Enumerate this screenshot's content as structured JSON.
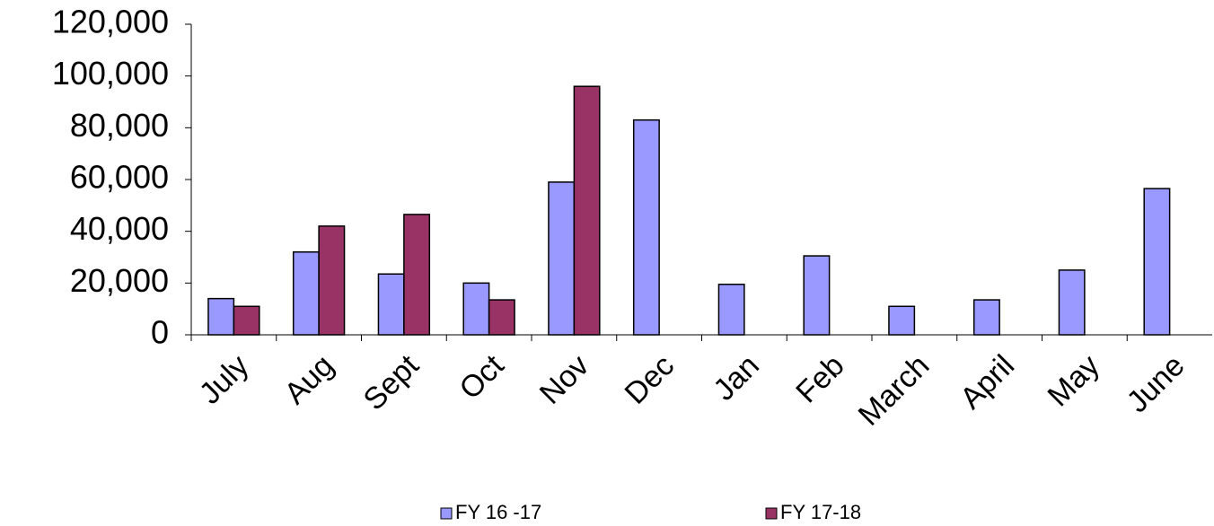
{
  "chart_data": {
    "type": "bar",
    "categories": [
      "July",
      "Aug",
      "Sept",
      "Oct",
      "Nov",
      "Dec",
      "Jan",
      "Feb",
      "March",
      "April",
      "May",
      "June"
    ],
    "series": [
      {
        "name": "FY 16 -17",
        "color": "#9999ff",
        "values": [
          14000,
          32000,
          23500,
          20000,
          59000,
          83000,
          19500,
          30500,
          11000,
          13500,
          25000,
          56500
        ]
      },
      {
        "name": "FY 17-18",
        "color": "#993366",
        "values": [
          11000,
          42000,
          46500,
          13500,
          96000,
          null,
          null,
          null,
          null,
          null,
          null,
          null
        ]
      }
    ],
    "ylim": [
      0,
      120000
    ],
    "yticks": [
      0,
      {
        "value": 20000,
        "label": "20,000"
      },
      {
        "value": 40000,
        "label": "40,000"
      },
      {
        "value": 60000,
        "label": "60,000"
      },
      {
        "value": 80000,
        "label": "80,000"
      },
      {
        "value": 100000,
        "label": "100,000"
      },
      {
        "value": 120000,
        "label": "120,000"
      }
    ],
    "grid": false,
    "legend": "bottom"
  }
}
